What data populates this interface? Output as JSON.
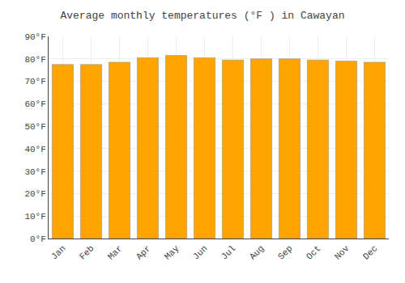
{
  "chart_data": {
    "type": "bar",
    "title": "Average monthly temperatures (°F ) in Cawayan",
    "categories": [
      "Jan",
      "Feb",
      "Mar",
      "Apr",
      "May",
      "Jun",
      "Jul",
      "Aug",
      "Sep",
      "Oct",
      "Nov",
      "Dec"
    ],
    "values": [
      77.5,
      77.5,
      78.5,
      80.5,
      81.5,
      80.5,
      79.5,
      80.0,
      80.0,
      79.5,
      79.0,
      78.5
    ],
    "color": "#FFA500",
    "ylim": [
      0,
      90
    ],
    "yticks": [
      {
        "value": 0,
        "label": "0°F"
      },
      {
        "value": 10,
        "label": "10°F"
      },
      {
        "value": 20,
        "label": "20°F"
      },
      {
        "value": 30,
        "label": "30°F"
      },
      {
        "value": 40,
        "label": "40°F"
      },
      {
        "value": 50,
        "label": "50°F"
      },
      {
        "value": 60,
        "label": "60°F"
      },
      {
        "value": 70,
        "label": "70°F"
      },
      {
        "value": 80,
        "label": "80°F"
      },
      {
        "value": 90,
        "label": "90°F"
      }
    ],
    "grid": true
  }
}
